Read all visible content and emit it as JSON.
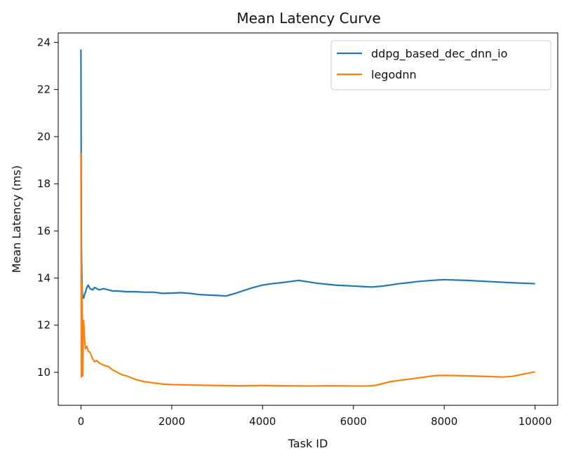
{
  "chart_data": {
    "type": "line",
    "title": "Mean Latency Curve",
    "xlabel": "Task ID",
    "ylabel": "Mean Latency (ms)",
    "xlim": [
      -500,
      10500
    ],
    "ylim": [
      8.6,
      24.4
    ],
    "xticks": [
      0,
      2000,
      4000,
      6000,
      8000,
      10000
    ],
    "yticks": [
      10,
      12,
      14,
      16,
      18,
      20,
      22,
      24
    ],
    "grid": false,
    "legend_position": "top-right",
    "series": [
      {
        "name": "ddpg_based_dec_dnn_io",
        "color": "#1f77b4",
        "x": [
          0,
          5,
          10,
          20,
          30,
          40,
          60,
          80,
          100,
          130,
          160,
          200,
          260,
          300,
          350,
          400,
          500,
          600,
          700,
          800,
          1000,
          1200,
          1400,
          1600,
          1800,
          2000,
          2200,
          2400,
          2600,
          2800,
          3000,
          3200,
          3400,
          3600,
          3800,
          4000,
          4200,
          4400,
          4600,
          4800,
          5000,
          5200,
          5400,
          5600,
          5800,
          6000,
          6200,
          6400,
          6600,
          6800,
          7000,
          7200,
          7400,
          7600,
          7800,
          8000,
          8500,
          9000,
          9500,
          10000
        ],
        "y": [
          23.7,
          19.5,
          15.5,
          14.0,
          13.4,
          13.2,
          13.15,
          13.3,
          13.4,
          13.6,
          13.7,
          13.55,
          13.5,
          13.6,
          13.55,
          13.5,
          13.55,
          13.5,
          13.45,
          13.45,
          13.42,
          13.42,
          13.4,
          13.4,
          13.35,
          13.36,
          13.38,
          13.35,
          13.3,
          13.28,
          13.26,
          13.24,
          13.35,
          13.48,
          13.6,
          13.7,
          13.76,
          13.8,
          13.85,
          13.9,
          13.84,
          13.78,
          13.74,
          13.7,
          13.68,
          13.66,
          13.64,
          13.62,
          13.65,
          13.7,
          13.76,
          13.8,
          13.85,
          13.88,
          13.91,
          13.93,
          13.9,
          13.85,
          13.8,
          13.76
        ]
      },
      {
        "name": "legodnn",
        "color": "#ff7f0e",
        "x": [
          0,
          5,
          10,
          15,
          20,
          30,
          40,
          50,
          60,
          80,
          100,
          130,
          160,
          200,
          250,
          300,
          350,
          400,
          450,
          500,
          600,
          700,
          800,
          900,
          1000,
          1200,
          1400,
          1600,
          1800,
          2000,
          2500,
          3000,
          3500,
          4000,
          4500,
          5000,
          5500,
          6000,
          6300,
          6500,
          6600,
          6800,
          7000,
          7500,
          7800,
          8000,
          8500,
          9000,
          9300,
          9500,
          10000
        ],
        "y": [
          19.3,
          15.0,
          9.8,
          11.5,
          13.8,
          12.5,
          9.85,
          11.8,
          12.2,
          11.4,
          11.0,
          11.1,
          10.9,
          10.85,
          10.6,
          10.45,
          10.5,
          10.4,
          10.35,
          10.3,
          10.25,
          10.1,
          10.0,
          9.9,
          9.85,
          9.7,
          9.6,
          9.55,
          9.5,
          9.48,
          9.46,
          9.44,
          9.43,
          9.44,
          9.43,
          9.42,
          9.43,
          9.42,
          9.42,
          9.45,
          9.5,
          9.6,
          9.65,
          9.78,
          9.86,
          9.87,
          9.85,
          9.82,
          9.8,
          9.83,
          10.02
        ]
      }
    ]
  }
}
